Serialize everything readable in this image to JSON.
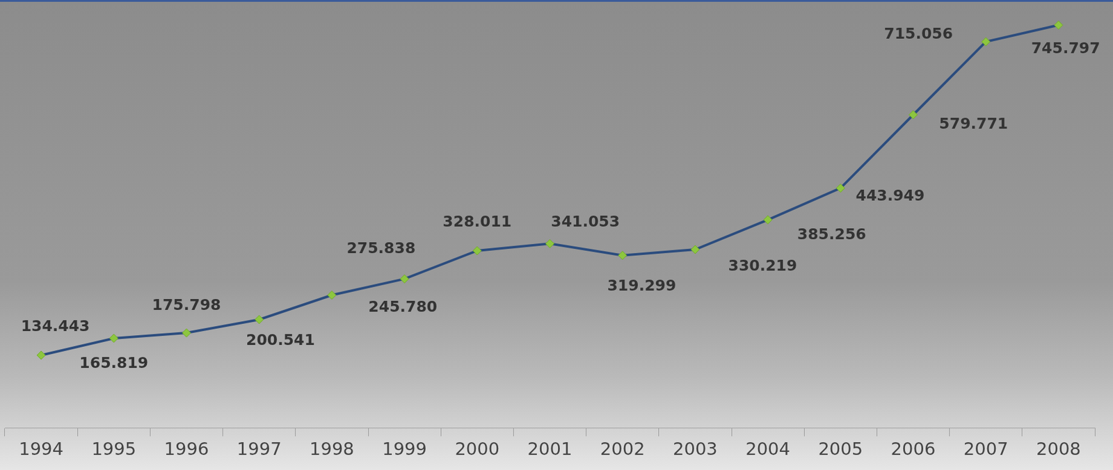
{
  "chart_data": {
    "type": "line",
    "categories": [
      "1994",
      "1995",
      "1996",
      "1997",
      "1998",
      "1999",
      "2000",
      "2001",
      "2002",
      "2003",
      "2004",
      "2005",
      "2006",
      "2007",
      "2008"
    ],
    "values": [
      134443,
      165819,
      175798,
      200541,
      245780,
      275838,
      328011,
      341053,
      319299,
      330219,
      385256,
      443949,
      579771,
      715056,
      745797
    ],
    "value_labels": [
      "134.443",
      "165.819",
      "175.798",
      "200.541",
      "245.780",
      "275.838",
      "328.011",
      "341.053",
      "319.299",
      "330.219",
      "385.256",
      "443.949",
      "579.771",
      "715.056",
      "745.797"
    ],
    "color": "#2b4c7e",
    "marker": "diamond",
    "data_labels": true,
    "tick_labels": "x",
    "grid": false,
    "ylim": [
      0,
      780000
    ]
  }
}
